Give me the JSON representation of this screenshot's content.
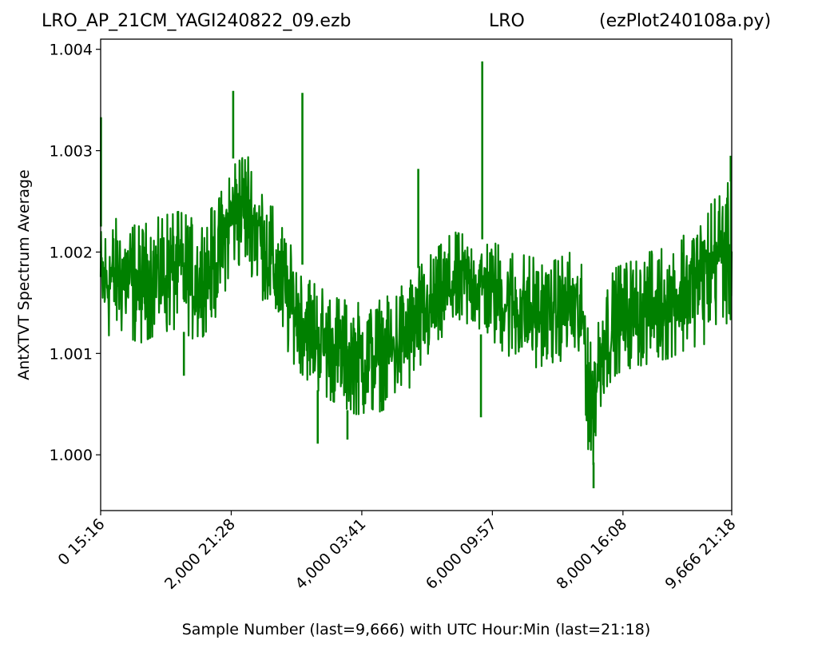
{
  "title": {
    "left": "LRO_AP_21CM_YAGI240822_09.ezb",
    "center": "LRO",
    "right": "(ezPlot240108a.py)"
  },
  "colors": {
    "series": "#008000",
    "axis": "#000000",
    "background": "#ffffff"
  },
  "chart_data": {
    "type": "line",
    "title": "LRO_AP_21CM_YAGI240822_09.ezb LRO (ezPlot240108a.py)",
    "xlabel": "Sample Number (last=9,666) with UTC Hour:Min (last=21:18)",
    "ylabel": "AntXTVT Spectrum Average",
    "xlim": [
      0,
      9666
    ],
    "ylim": [
      0.99945,
      1.0041
    ],
    "grid": false,
    "legend": "none",
    "x_ticks": [
      {
        "value": 0,
        "label": "0  15:16"
      },
      {
        "value": 2000,
        "label": "2,000  21:28"
      },
      {
        "value": 4000,
        "label": "4,000  03:41"
      },
      {
        "value": 6000,
        "label": "6,000  09:57"
      },
      {
        "value": 8000,
        "label": "8,000  16:08"
      },
      {
        "value": 9666,
        "label": "9,666  21:18"
      }
    ],
    "y_ticks": [
      {
        "value": 1.0,
        "label": "1.000"
      },
      {
        "value": 1.001,
        "label": "1.001"
      },
      {
        "value": 1.002,
        "label": "1.002"
      },
      {
        "value": 1.003,
        "label": "1.003"
      },
      {
        "value": 1.004,
        "label": "1.004"
      }
    ],
    "series": [
      {
        "color": "#008000",
        "envelope": {
          "x": [
            0,
            300,
            600,
            900,
            1200,
            1500,
            1800,
            2000,
            2200,
            2400,
            2700,
            3000,
            3300,
            3600,
            3900,
            4200,
            4500,
            4800,
            5100,
            5400,
            5700,
            6000,
            6300,
            6600,
            6900,
            7200,
            7400,
            7500,
            7700,
            7900,
            8100,
            8400,
            8700,
            9000,
            9300,
            9500,
            9666
          ],
          "low": [
            1.00115,
            1.0012,
            1.0011,
            1.0012,
            1.00125,
            1.0011,
            1.0014,
            1.0018,
            1.0019,
            1.00165,
            1.0012,
            1.00085,
            1.00065,
            1.0005,
            1.0004,
            1.0004,
            1.0005,
            1.0007,
            1.00095,
            1.0012,
            1.00125,
            1.0011,
            1.00095,
            1.00085,
            1.0009,
            1.00095,
            1.0007,
            0.9997,
            1.0006,
            1.0008,
            1.00085,
            1.0009,
            1.00095,
            1.00105,
            1.0011,
            1.0014,
            1.0012
          ],
          "high": [
            1.00225,
            1.00235,
            1.00225,
            1.00235,
            1.0024,
            1.0023,
            1.0025,
            1.0029,
            1.00305,
            1.0028,
            1.00235,
            1.00195,
            1.0017,
            1.00155,
            1.0015,
            1.0015,
            1.0016,
            1.0018,
            1.002,
            1.0022,
            1.00215,
            1.0021,
            1.002,
            1.00195,
            1.0019,
            1.002,
            1.00185,
            1.0011,
            1.00165,
            1.00185,
            1.0019,
            1.002,
            1.00205,
            1.00225,
            1.00245,
            1.00265,
            1.0027
          ]
        },
        "spikes": [
          {
            "x": 5,
            "y": 1.00333
          },
          {
            "x": 1275,
            "y": 1.00078
          },
          {
            "x": 2030,
            "y": 1.00359
          },
          {
            "x": 3090,
            "y": 1.00357
          },
          {
            "x": 3325,
            "y": 1.00011
          },
          {
            "x": 3780,
            "y": 1.00015
          },
          {
            "x": 4865,
            "y": 1.00282
          },
          {
            "x": 5845,
            "y": 1.00388
          },
          {
            "x": 5825,
            "y": 1.00037
          },
          {
            "x": 7550,
            "y": 0.99967
          },
          {
            "x": 9650,
            "y": 1.00295
          }
        ]
      }
    ]
  }
}
